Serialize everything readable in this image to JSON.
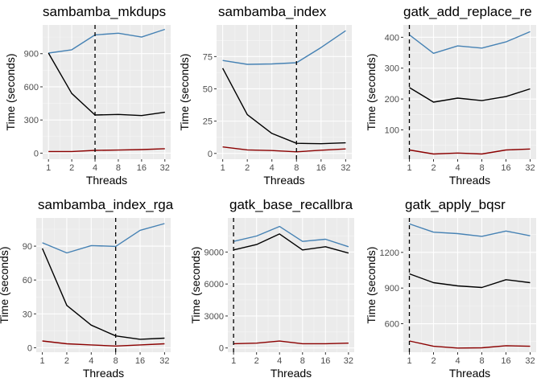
{
  "x_axis_label": "Threads",
  "y_axis_label": "Time (seconds)",
  "series_colors": [
    "#4682b4",
    "#000000",
    "#8b0000"
  ],
  "chart_data": [
    {
      "type": "line",
      "title": "sambamba_mkdups",
      "xlabel": "Threads",
      "ylabel": "Time (seconds)",
      "x_scale": "log2",
      "categories": [
        "1",
        "2",
        "4",
        "8",
        "16",
        "32"
      ],
      "yticks": [
        "0",
        "300",
        "600",
        "900"
      ],
      "ytick_values": [
        0,
        300,
        600,
        900
      ],
      "ylim": [
        -55,
        1160
      ],
      "vline_x": 4,
      "grid": true,
      "series": [
        {
          "color": "#4682b4",
          "values": [
            905,
            935,
            1070,
            1085,
            1050,
            1120
          ]
        },
        {
          "color": "#000000",
          "values": [
            905,
            540,
            345,
            350,
            340,
            370
          ]
        },
        {
          "color": "#8b0000",
          "values": [
            15,
            15,
            25,
            28,
            32,
            40
          ]
        }
      ]
    },
    {
      "type": "line",
      "title": "sambamba_index",
      "xlabel": "Threads",
      "ylabel": "Time (seconds)",
      "x_scale": "log2",
      "categories": [
        "1",
        "2",
        "4",
        "8",
        "16",
        "32"
      ],
      "yticks": [
        "0",
        "25",
        "50",
        "75"
      ],
      "ytick_values": [
        0,
        25,
        50,
        75
      ],
      "ylim": [
        -4.5,
        99.5
      ],
      "vline_x": 8,
      "grid": true,
      "series": [
        {
          "color": "#4682b4",
          "values": [
            72,
            69,
            69.3,
            70.2,
            82,
            95
          ]
        },
        {
          "color": "#000000",
          "values": [
            66,
            30,
            15.5,
            7.8,
            7.5,
            8.2
          ]
        },
        {
          "color": "#8b0000",
          "values": [
            5,
            2.7,
            2.2,
            1.2,
            2.5,
            3.5
          ]
        }
      ]
    },
    {
      "type": "line",
      "title": "gatk_add_replace_re",
      "xlabel": "Threads",
      "ylabel": "Time (seconds)",
      "x_scale": "log2",
      "categories": [
        "1",
        "2",
        "4",
        "8",
        "16",
        "32"
      ],
      "yticks": [
        "100",
        "200",
        "300",
        "400"
      ],
      "ytick_values": [
        100,
        200,
        300,
        400
      ],
      "ylim": [
        5,
        440
      ],
      "vline_x": 1,
      "grid": true,
      "series": [
        {
          "color": "#4682b4",
          "values": [
            408,
            348,
            372,
            365,
            385,
            418
          ]
        },
        {
          "color": "#000000",
          "values": [
            237,
            190,
            203,
            195,
            208,
            233
          ]
        },
        {
          "color": "#8b0000",
          "values": [
            35,
            22,
            25,
            22,
            35,
            38
          ]
        }
      ]
    },
    {
      "type": "line",
      "title": "sambamba_index_rga",
      "xlabel": "Threads",
      "ylabel": "Time (seconds)",
      "x_scale": "log2",
      "categories": [
        "1",
        "2",
        "4",
        "8",
        "16",
        "32"
      ],
      "yticks": [
        "0",
        "30",
        "60",
        "90"
      ],
      "ytick_values": [
        0,
        30,
        60,
        90
      ],
      "ylim": [
        -4,
        115
      ],
      "vline_x": 8,
      "grid": true,
      "series": [
        {
          "color": "#4682b4",
          "values": [
            93,
            84,
            90.5,
            89.8,
            104,
            110
          ]
        },
        {
          "color": "#000000",
          "values": [
            88,
            37.5,
            20,
            10.5,
            7.5,
            8.5
          ]
        },
        {
          "color": "#8b0000",
          "values": [
            6,
            3.5,
            2.5,
            1.5,
            2.5,
            3.5
          ]
        }
      ]
    },
    {
      "type": "line",
      "title": "gatk_base_recallbra",
      "xlabel": "Threads",
      "ylabel": "Time (seconds)",
      "x_scale": "log2",
      "categories": [
        "1",
        "2",
        "4",
        "8",
        "16",
        "32"
      ],
      "yticks": [
        "0",
        "3000",
        "6000",
        "9000"
      ],
      "ytick_values": [
        0,
        3000,
        6000,
        9000
      ],
      "ylim": [
        -400,
        12200
      ],
      "vline_x": 1,
      "grid": true,
      "series": [
        {
          "color": "#4682b4",
          "values": [
            10000,
            10500,
            11400,
            10000,
            10200,
            9500
          ]
        },
        {
          "color": "#000000",
          "values": [
            9200,
            9700,
            10700,
            9200,
            9500,
            8900
          ]
        },
        {
          "color": "#8b0000",
          "values": [
            400,
            450,
            650,
            400,
            400,
            450
          ]
        }
      ]
    },
    {
      "type": "line",
      "title": "gatk_apply_bqsr",
      "xlabel": "Threads",
      "ylabel": "Time (seconds)",
      "x_scale": "log2",
      "categories": [
        "1",
        "2",
        "4",
        "8",
        "16",
        "32"
      ],
      "yticks": [
        "600",
        "900",
        "1200"
      ],
      "ytick_values": [
        600,
        900,
        1200
      ],
      "ylim": [
        360,
        1490
      ],
      "vline_x": 1,
      "grid": true,
      "series": [
        {
          "color": "#4682b4",
          "values": [
            1440,
            1370,
            1358,
            1335,
            1380,
            1340
          ]
        },
        {
          "color": "#000000",
          "values": [
            1020,
            945,
            918,
            905,
            970,
            945
          ]
        },
        {
          "color": "#8b0000",
          "values": [
            455,
            410,
            395,
            397,
            415,
            410
          ]
        }
      ]
    }
  ]
}
